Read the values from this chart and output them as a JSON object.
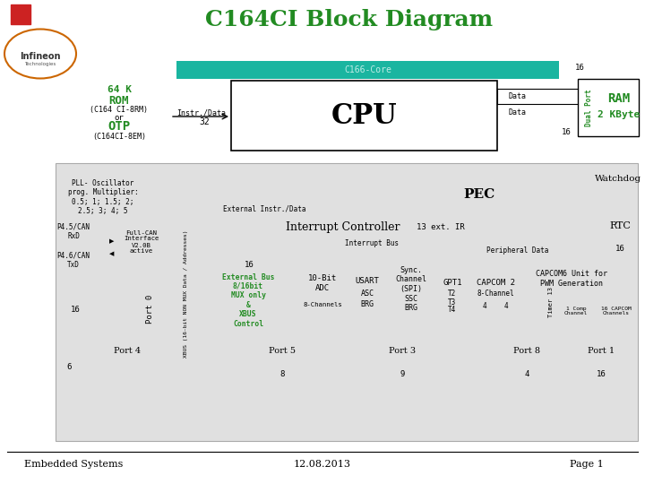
{
  "title": "C164CI Block Diagram",
  "title_color": "#228B22",
  "bg_color": "#ffffff",
  "gray_bg": "#e0e0e0",
  "teal_color": "#1ab5a0",
  "green_color": "#228B22",
  "footer_left": "Embedded Systems",
  "footer_center": "12.08.2013",
  "footer_right": "Page 1",
  "c166_core_label": "C166-Core",
  "pll_text": "PLL- Oscillator\nprog. Multiplier:\n0.5; 1; 1.5; 2;\n2.5; 3; 4; 5",
  "watchdog": "Watchdog",
  "pec": "PEC",
  "rtc": "RTC",
  "ext_instr_data": "External Instr./Data",
  "interrupt_ctrl": "Interrupt Controller",
  "ext_ir": "13 ext. IR",
  "interrupt_bus": "Interrupt Bus",
  "peripheral_data": "Peripheral Data",
  "xbus_label": "XBUS (16-bit NON MUX Data / Addresses)",
  "ext_bus_label": "External Bus\n8/16bit\nMUX only\n&\nXBUS\nControl",
  "p45_can_rxd": "P4.5/CAN\nRxD",
  "p46_can_txd": "P4.6/CAN\nTxD",
  "full_can": "Full-CAN\nInterface\nV2.0B\nactive"
}
